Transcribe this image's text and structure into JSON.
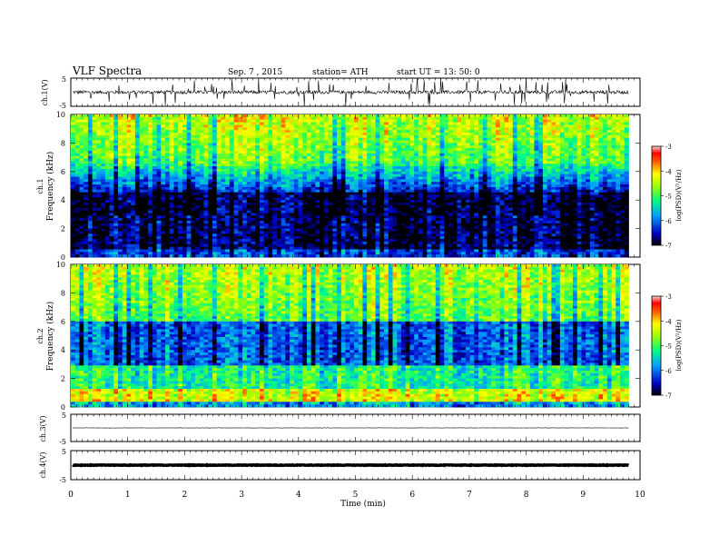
{
  "header": {
    "title": "VLF  Spectra",
    "date": "Sep. 7  , 2015",
    "station": "station= ATH",
    "start": "start  UT  =   13: 50: 0"
  },
  "chart_data": [
    {
      "type": "line",
      "panel": "ch1-waveform",
      "ylabel": "ch.1(V)",
      "yticks": [
        "5",
        "-5"
      ],
      "ylim": [
        -5,
        5
      ],
      "xlim": [
        0,
        10
      ],
      "baseline": 0,
      "data_end_min": 9.8
    },
    {
      "type": "heatmap",
      "panel": "ch1-spectrogram",
      "ylabel_channel": "ch.1",
      "ylabel": "Frequency  (kHz)",
      "yticks": [
        "0",
        "2",
        "4",
        "6",
        "8",
        "10"
      ],
      "ylim": [
        0,
        10
      ],
      "xlim": [
        0,
        10
      ],
      "data_end_min": 9.8,
      "colorbar": {
        "label": "log(PSD)(V²/Hz)",
        "ticks": [
          "-3",
          "-4",
          "-5",
          "-6",
          "-7"
        ],
        "range": [
          -7,
          -3
        ]
      }
    },
    {
      "type": "heatmap",
      "panel": "ch2-spectrogram",
      "ylabel_channel": "ch.2",
      "ylabel": "Frequency  (kHz)",
      "yticks": [
        "0",
        "2",
        "4",
        "6",
        "8",
        "10"
      ],
      "ylim": [
        0,
        10
      ],
      "xlim": [
        0,
        10
      ],
      "data_end_min": 9.8,
      "colorbar": {
        "label": "log(PSD)(V²/Hz)",
        "ticks": [
          "-3",
          "-4",
          "-5",
          "-6",
          "-7"
        ],
        "range": [
          -7,
          -3
        ]
      }
    },
    {
      "type": "line",
      "panel": "ch3-waveform",
      "ylabel": "ch.3(V)",
      "yticks": [
        "5",
        "-5"
      ],
      "ylim": [
        -5,
        5
      ],
      "xlim": [
        0,
        10
      ],
      "baseline": 0,
      "data_end_min": 9.8
    },
    {
      "type": "line",
      "panel": "ch4-waveform",
      "ylabel": "ch.4(V)",
      "yticks": [
        "5",
        "-5"
      ],
      "ylim": [
        -5,
        5
      ],
      "xlim": [
        0,
        10
      ],
      "baseline": 0,
      "data_end_min": 9.8
    }
  ],
  "xaxis": {
    "label": "Time  (min)",
    "ticks": [
      "0",
      "1",
      "2",
      "3",
      "4",
      "5",
      "6",
      "7",
      "8",
      "9",
      "10"
    ]
  }
}
